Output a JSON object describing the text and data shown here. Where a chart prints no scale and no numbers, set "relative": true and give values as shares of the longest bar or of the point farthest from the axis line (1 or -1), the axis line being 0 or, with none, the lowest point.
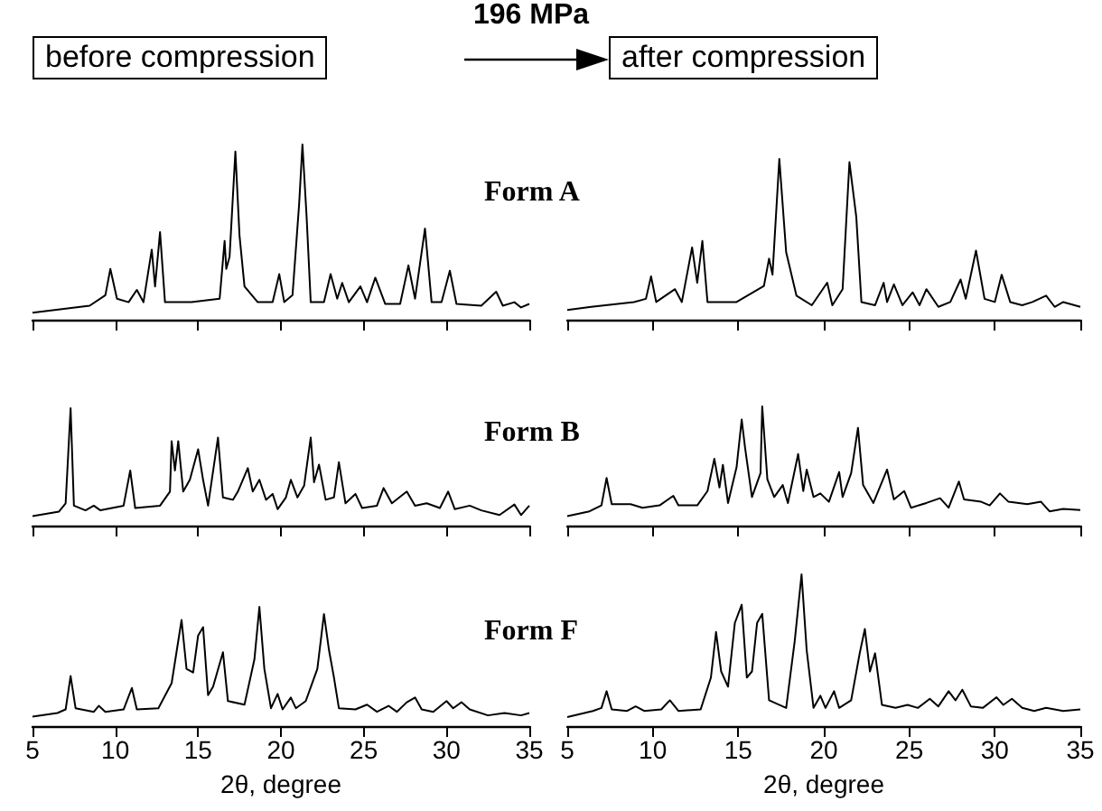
{
  "chart_data": [
    {
      "type": "line",
      "title": "Form A",
      "annotations": [
        "before compression",
        "196 MPa",
        "after compression"
      ],
      "relative": true,
      "xlim": [
        5,
        35
      ],
      "xticks": [
        5,
        10,
        15,
        20,
        25,
        30,
        35
      ],
      "tick_labels": false,
      "marker": "none",
      "x": [
        5,
        8.45,
        9.4,
        9.7,
        10.1,
        10.8,
        11.3,
        11.7,
        12.2,
        12.4,
        12.7,
        13.0,
        14.6,
        16.3,
        16.6,
        16.7,
        16.9,
        17.25,
        17.5,
        17.8,
        18.6,
        19.5,
        19.9,
        20.2,
        20.7,
        21.1,
        21.3,
        21.55,
        21.8,
        22.6,
        23.0,
        23.4,
        23.7,
        24.1,
        24.8,
        25.2,
        25.7,
        26.3,
        27.2,
        27.7,
        28.1,
        28.7,
        29.1,
        29.7,
        30.2,
        30.6,
        32.1,
        33.0,
        33.4,
        34.1,
        34.5,
        35
      ],
      "series": [
        {
          "color": "#000000",
          "values": [
            0.04,
            0.08,
            0.14,
            0.29,
            0.12,
            0.1,
            0.17,
            0.1,
            0.4,
            0.19,
            0.5,
            0.1,
            0.1,
            0.12,
            0.45,
            0.29,
            0.36,
            0.96,
            0.48,
            0.19,
            0.1,
            0.1,
            0.26,
            0.1,
            0.14,
            0.66,
            1,
            0.59,
            0.1,
            0.1,
            0.26,
            0.12,
            0.21,
            0.1,
            0.19,
            0.1,
            0.24,
            0.09,
            0.09,
            0.31,
            0.12,
            0.52,
            0.1,
            0.1,
            0.28,
            0.09,
            0.08,
            0.16,
            0.08,
            0.1,
            0.07,
            0.09
          ]
        }
      ]
    },
    {
      "type": "line",
      "relative": true,
      "xlim": [
        5,
        35
      ],
      "xticks": [
        5,
        10,
        15,
        20,
        25,
        30,
        35
      ],
      "tick_labels": false,
      "marker": "none",
      "x": [
        5,
        6.4,
        8.9,
        9.6,
        9.9,
        10.2,
        11.3,
        11.7,
        12.3,
        12.6,
        12.9,
        13.2,
        14.9,
        16.5,
        16.8,
        17.0,
        17.4,
        17.8,
        18.4,
        19.3,
        20.2,
        20.5,
        21.1,
        21.5,
        21.9,
        22.2,
        23.0,
        23.5,
        23.7,
        24.1,
        24.6,
        25.2,
        25.6,
        26.0,
        26.7,
        27.4,
        28.0,
        28.3,
        28.9,
        29.4,
        30.0,
        30.4,
        30.9,
        31.6,
        32.2,
        33.0,
        33.5,
        34.0,
        35
      ],
      "series": [
        {
          "color": "#000000",
          "values": [
            0.06,
            0.08,
            0.11,
            0.13,
            0.27,
            0.11,
            0.19,
            0.11,
            0.45,
            0.23,
            0.49,
            0.11,
            0.11,
            0.21,
            0.38,
            0.28,
            1,
            0.42,
            0.15,
            0.09,
            0.23,
            0.09,
            0.19,
            0.98,
            0.64,
            0.11,
            0.09,
            0.23,
            0.11,
            0.22,
            0.09,
            0.17,
            0.09,
            0.19,
            0.08,
            0.11,
            0.25,
            0.13,
            0.43,
            0.13,
            0.11,
            0.28,
            0.11,
            0.09,
            0.11,
            0.15,
            0.08,
            0.11,
            0.08
          ]
        }
      ]
    },
    {
      "type": "line",
      "title": "Form B",
      "relative": true,
      "xlim": [
        5,
        35
      ],
      "xticks": [
        5,
        10,
        15,
        20,
        25,
        30,
        35
      ],
      "tick_labels": false,
      "marker": "none",
      "x": [
        5,
        6.6,
        7.0,
        7.3,
        7.5,
        8.2,
        8.7,
        9.1,
        10.5,
        10.9,
        11.2,
        12.7,
        13.3,
        13.4,
        13.6,
        13.8,
        14.1,
        14.5,
        15.0,
        15.3,
        15.6,
        16.2,
        16.5,
        17.1,
        17.4,
        18.0,
        18.3,
        18.7,
        19.1,
        19.5,
        19.8,
        20.3,
        20.6,
        21.0,
        21.4,
        21.8,
        22.0,
        22.3,
        22.7,
        23.2,
        23.5,
        23.9,
        24.5,
        24.9,
        25.8,
        26.2,
        26.7,
        27.6,
        28.1,
        28.8,
        29.6,
        30.1,
        30.5,
        31.4,
        32.1,
        33.2,
        34.1,
        34.5,
        35
      ],
      "series": [
        {
          "color": "#000000",
          "values": [
            0.08,
            0.12,
            0.19,
            1,
            0.17,
            0.13,
            0.17,
            0.13,
            0.17,
            0.47,
            0.15,
            0.17,
            0.29,
            0.72,
            0.47,
            0.72,
            0.29,
            0.39,
            0.65,
            0.39,
            0.17,
            0.75,
            0.24,
            0.22,
            0.29,
            0.49,
            0.29,
            0.39,
            0.22,
            0.27,
            0.14,
            0.24,
            0.39,
            0.24,
            0.34,
            0.75,
            0.37,
            0.52,
            0.22,
            0.24,
            0.54,
            0.19,
            0.27,
            0.15,
            0.17,
            0.32,
            0.19,
            0.29,
            0.17,
            0.19,
            0.15,
            0.29,
            0.14,
            0.17,
            0.13,
            0.09,
            0.18,
            0.09,
            0.17
          ]
        }
      ]
    },
    {
      "type": "line",
      "relative": true,
      "xlim": [
        5,
        35
      ],
      "xticks": [
        5,
        10,
        15,
        20,
        25,
        30,
        35
      ],
      "tick_labels": false,
      "marker": "none",
      "x": [
        5,
        6.3,
        7.0,
        7.3,
        7.6,
        8.7,
        9.4,
        10.4,
        11.2,
        11.5,
        12.6,
        13.2,
        13.6,
        13.9,
        14.1,
        14.4,
        14.9,
        15.2,
        15.4,
        15.8,
        16.3,
        16.4,
        16.7,
        17.1,
        17.6,
        17.9,
        18.5,
        18.8,
        19.0,
        19.4,
        19.8,
        20.3,
        20.9,
        21.1,
        21.6,
        22.0,
        22.3,
        22.9,
        23.7,
        24.1,
        24.7,
        25.1,
        26.0,
        26.8,
        27.3,
        27.9,
        28.2,
        29.2,
        29.7,
        30.3,
        30.8,
        31.9,
        32.7,
        33.2,
        34.0,
        35
      ],
      "series": [
        {
          "color": "#000000",
          "values": [
            0.08,
            0.12,
            0.17,
            0.4,
            0.18,
            0.18,
            0.15,
            0.17,
            0.25,
            0.17,
            0.17,
            0.29,
            0.56,
            0.32,
            0.51,
            0.19,
            0.49,
            0.89,
            0.65,
            0.24,
            0.44,
            1,
            0.39,
            0.24,
            0.34,
            0.19,
            0.6,
            0.29,
            0.47,
            0.24,
            0.27,
            0.2,
            0.45,
            0.24,
            0.44,
            0.82,
            0.34,
            0.19,
            0.47,
            0.22,
            0.29,
            0.15,
            0.19,
            0.23,
            0.15,
            0.37,
            0.22,
            0.2,
            0.17,
            0.27,
            0.2,
            0.18,
            0.2,
            0.12,
            0.14,
            0.13
          ]
        }
      ]
    },
    {
      "type": "line",
      "title": "Form F",
      "xlabel": "2θ, degree",
      "relative": true,
      "xlim": [
        5,
        35
      ],
      "xticks": [
        5,
        10,
        15,
        20,
        25,
        30,
        35
      ],
      "tick_labels": "x",
      "marker": "none",
      "x": [
        5,
        6.5,
        7.0,
        7.3,
        7.6,
        8.7,
        9.0,
        9.4,
        10.5,
        11.0,
        11.3,
        12.6,
        13.4,
        14.0,
        14.3,
        14.7,
        15.0,
        15.3,
        15.6,
        15.9,
        16.5,
        16.8,
        17.8,
        18.4,
        18.7,
        19.0,
        19.4,
        19.8,
        20.1,
        20.6,
        20.9,
        21.5,
        22.2,
        22.6,
        22.9,
        23.2,
        23.5,
        24.5,
        25.2,
        25.8,
        26.5,
        27.0,
        27.6,
        28.1,
        28.5,
        29.2,
        30.0,
        30.4,
        30.9,
        31.4,
        32.5,
        33.5,
        34.5,
        35
      ],
      "series": [
        {
          "color": "#000000",
          "values": [
            0.08,
            0.11,
            0.14,
            0.42,
            0.15,
            0.12,
            0.17,
            0.12,
            0.14,
            0.32,
            0.14,
            0.15,
            0.36,
            0.89,
            0.48,
            0.45,
            0.76,
            0.83,
            0.26,
            0.33,
            0.62,
            0.21,
            0.18,
            0.56,
            1,
            0.48,
            0.15,
            0.27,
            0.14,
            0.24,
            0.15,
            0.21,
            0.48,
            0.94,
            0.64,
            0.41,
            0.15,
            0.14,
            0.18,
            0.12,
            0.17,
            0.12,
            0.2,
            0.24,
            0.14,
            0.12,
            0.21,
            0.15,
            0.2,
            0.14,
            0.09,
            0.11,
            0.09,
            0.11
          ]
        }
      ]
    },
    {
      "type": "line",
      "xlabel": "2θ, degree",
      "relative": true,
      "xlim": [
        5,
        35
      ],
      "xticks": [
        5,
        10,
        15,
        20,
        25,
        30,
        35
      ],
      "tick_labels": "x",
      "marker": "none",
      "x": [
        5,
        6.5,
        7.0,
        7.3,
        7.6,
        8.5,
        9.0,
        9.5,
        10.5,
        11.0,
        11.5,
        12.8,
        13.4,
        13.7,
        14.0,
        14.4,
        14.8,
        15.2,
        15.5,
        15.8,
        16.1,
        16.4,
        16.8,
        17.8,
        18.3,
        18.7,
        19.0,
        19.4,
        19.8,
        20.1,
        20.6,
        20.9,
        21.6,
        22.1,
        22.4,
        22.7,
        23.0,
        23.4,
        24.2,
        24.9,
        25.5,
        26.2,
        26.7,
        27.3,
        27.7,
        28.1,
        28.6,
        29.3,
        30.1,
        30.5,
        31.0,
        31.6,
        32.3,
        33.0,
        34.0,
        35
      ],
      "series": [
        {
          "color": "#000000",
          "values": [
            0.06,
            0.1,
            0.12,
            0.23,
            0.11,
            0.1,
            0.13,
            0.1,
            0.11,
            0.17,
            0.1,
            0.11,
            0.32,
            0.62,
            0.36,
            0.26,
            0.68,
            0.8,
            0.32,
            0.36,
            0.68,
            0.74,
            0.17,
            0.12,
            0.56,
            1,
            0.5,
            0.12,
            0.2,
            0.12,
            0.23,
            0.12,
            0.17,
            0.48,
            0.64,
            0.36,
            0.48,
            0.14,
            0.12,
            0.14,
            0.12,
            0.18,
            0.13,
            0.23,
            0.17,
            0.24,
            0.13,
            0.12,
            0.19,
            0.14,
            0.18,
            0.12,
            0.1,
            0.12,
            0.1,
            0.11
          ]
        }
      ]
    }
  ]
}
